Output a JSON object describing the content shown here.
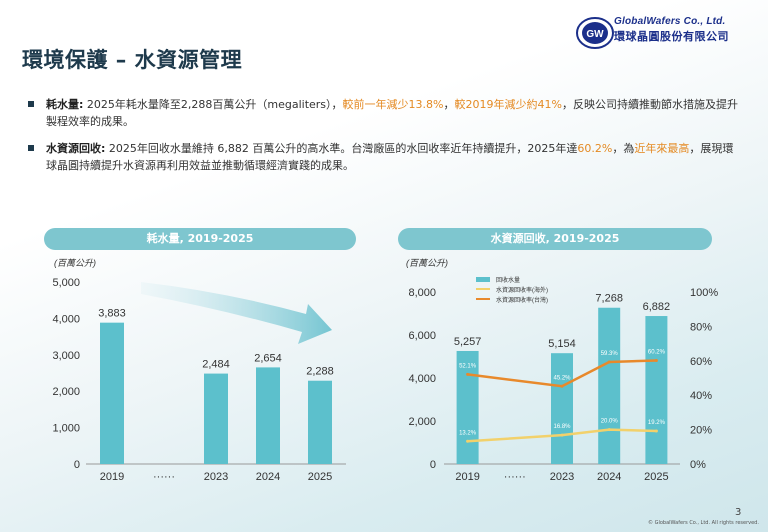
{
  "title": "環境保護 – 水資源管理",
  "logo": {
    "en": "GlobalWafers Co., Ltd.",
    "zh": "環球晶圓股份有限公司",
    "mark": "GW"
  },
  "bullets": [
    {
      "head": "耗水量:",
      "parts": [
        {
          "t": " 2025年耗水量降至2,288百萬公升（megaliters），",
          "h": false
        },
        {
          "t": "較前一年減少13.8%",
          "h": true
        },
        {
          "t": "，",
          "h": false
        },
        {
          "t": "較2019年減少約41%",
          "h": true
        },
        {
          "t": "，反映公司持續推動節水措施及提升製程效率的成果。",
          "h": false
        }
      ]
    },
    {
      "head": "水資源回收:",
      "parts": [
        {
          "t": " 2025年回收水量維持 6,882 百萬公升的高水準。台灣廠區的水回收率近年持續提升，2025年達",
          "h": false
        },
        {
          "t": "60.2%",
          "h": true
        },
        {
          "t": "，為",
          "h": false
        },
        {
          "t": "近年來最高",
          "h": true
        },
        {
          "t": "，展現環球晶圓持續提升水資源再利用效益並推動循環經濟實踐的成果。",
          "h": false
        }
      ]
    }
  ],
  "page_number": "3",
  "copyright": "© GlobalWafers Co., Ltd. All rights reserved.",
  "colors": {
    "bar": "#5cc0cc",
    "pill": "#7ec6cf",
    "line_overseas": "#f2d16b",
    "line_taiwan": "#e8892b",
    "highlight": "#e48a23"
  },
  "chart_data": [
    {
      "type": "bar",
      "title": "耗水量, 2019-2025",
      "unit_label": "(百萬公升)",
      "categories": [
        "2019",
        "······",
        "2023",
        "2024",
        "2025"
      ],
      "values": [
        3883,
        null,
        2484,
        2654,
        2288
      ],
      "value_labels": [
        "3,883",
        "",
        "2,484",
        "2,654",
        "2,288"
      ],
      "ylim": [
        0,
        5000
      ],
      "yticks": [
        "0",
        "1,000",
        "2,000",
        "3,000",
        "4,000",
        "5,000"
      ]
    },
    {
      "type": "bar+line",
      "title": "水資源回收, 2019-2025",
      "unit_label": "(百萬公升)",
      "categories": [
        "2019",
        "······",
        "2023",
        "2024",
        "2025"
      ],
      "bar_series": {
        "name": "回收水量",
        "values": [
          5257,
          null,
          5154,
          7268,
          6882
        ],
        "labels": [
          "5,257",
          "",
          "5,154",
          "7,268",
          "6,882"
        ]
      },
      "line_series": [
        {
          "name": "水資源回收率(海外)",
          "values": [
            13.2,
            null,
            16.8,
            20.0,
            19.2
          ],
          "labels": [
            "13.2%",
            "",
            "16.8%",
            "20.0%",
            "19.2%"
          ]
        },
        {
          "name": "水資源回收率(台灣)",
          "values": [
            52.1,
            null,
            45.2,
            59.3,
            60.2
          ],
          "labels": [
            "52.1%",
            "",
            "45.2%",
            "59.3%",
            "60.2%"
          ]
        }
      ],
      "ylim_left": [
        0,
        8000
      ],
      "yticks_left": [
        "0",
        "2,000",
        "4,000",
        "6,000",
        "8,000"
      ],
      "ylim_right": [
        0,
        100
      ],
      "yticks_right": [
        "0%",
        "20%",
        "40%",
        "60%",
        "80%",
        "100%"
      ],
      "legend_position": "top-left"
    }
  ]
}
